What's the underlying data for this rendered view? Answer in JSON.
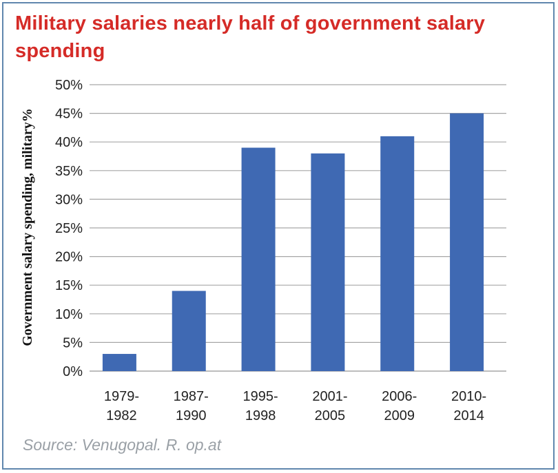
{
  "chart_data": {
    "type": "bar",
    "title": "Military salaries nearly half of government salary spending",
    "ylabel": "Government salary spending, military%",
    "xlabel": "",
    "categories": [
      [
        "1979-",
        "1982"
      ],
      [
        "1987-",
        "1990"
      ],
      [
        "1995-",
        "1998"
      ],
      [
        "2001-",
        "2005"
      ],
      [
        "2006-",
        "2009"
      ],
      [
        "2010-",
        "2014"
      ]
    ],
    "values": [
      3,
      14,
      39,
      38,
      41,
      45
    ],
    "ylim": [
      0,
      50
    ],
    "yticks": [
      0,
      5,
      10,
      15,
      20,
      25,
      30,
      35,
      40,
      45,
      50
    ],
    "ytick_suffix": "%",
    "grid": true,
    "bar_color": "#3f69b3",
    "grid_color": "#a6a6a6"
  },
  "source": "Source: Venugopal. R. op.at"
}
